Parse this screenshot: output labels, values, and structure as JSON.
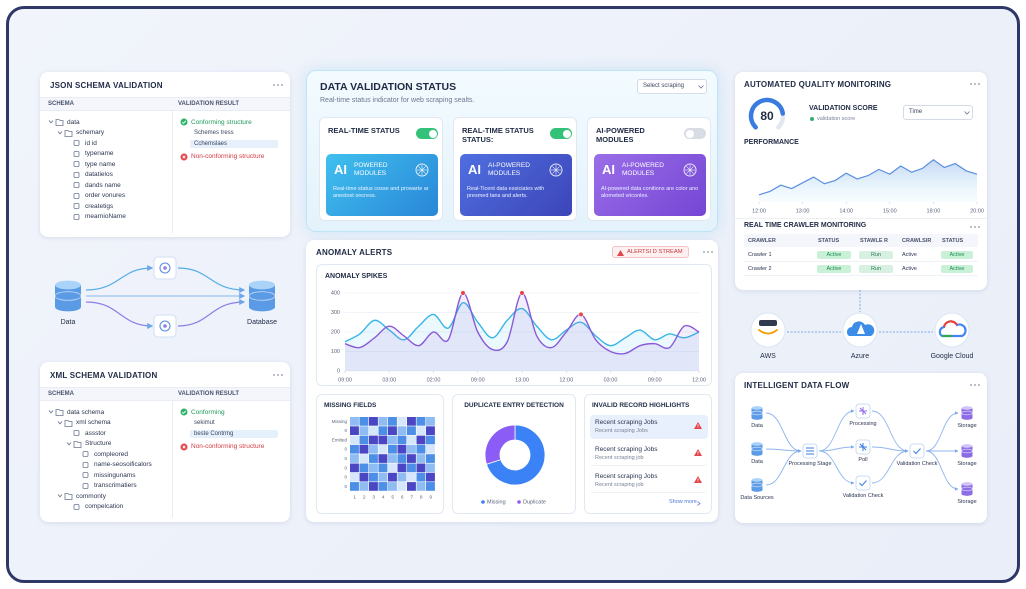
{
  "json_schema": {
    "title": "JSON SCHEMA VALIDATION",
    "columns": [
      "SCHEMA",
      "VALIDATION RESULT"
    ],
    "tree": [
      {
        "label": "data",
        "children": [
          {
            "label": "schemary",
            "children": [
              {
                "label": "id id"
              },
              {
                "label": "typename"
              },
              {
                "label": "type name"
              },
              {
                "label": "datatielos"
              },
              {
                "label": "dands name"
              },
              {
                "label": "order vonures"
              },
              {
                "label": "createtigs"
              },
              {
                "label": "mearnioName"
              }
            ]
          }
        ]
      }
    ],
    "results": [
      {
        "label": "Conforming structure",
        "ok": true,
        "children": [
          "Schemes tress",
          "Cchemslaes"
        ]
      },
      {
        "label": "Non-conforming structure",
        "ok": false
      }
    ]
  },
  "data_flow": {
    "source": "Data",
    "target": "Database"
  },
  "xml_schema": {
    "title": "XML SCHEMA VALIDATION",
    "columns": [
      "SCHEMA",
      "VALIDATION RESULT"
    ],
    "tree": [
      {
        "label": "data schema",
        "children": [
          {
            "label": "xml schema",
            "children": [
              {
                "label": "assstor"
              },
              {
                "label": "Structure",
                "children": [
                  {
                    "label": "compleored"
                  },
                  {
                    "label": "name-seosoificalors"
                  },
                  {
                    "label": "missingunams"
                  },
                  {
                    "label": "transcrimatiers"
                  }
                ]
              }
            ]
          },
          {
            "label": "commonty",
            "children": [
              {
                "label": "compelcation"
              }
            ]
          }
        ]
      }
    ],
    "results": [
      {
        "label": "Conforming",
        "ok": true,
        "children": [
          "sekimut",
          "beste Contrmg"
        ]
      },
      {
        "label": "Non-conforming structure",
        "ok": false
      }
    ]
  },
  "validation_status": {
    "title": "DATA VALIDATION STATUS",
    "subtitle": "Real-time status indicator for web scraping sealts.",
    "select": "Select scraping",
    "cards": [
      {
        "title": "REAL-TIME STATUS",
        "on": true,
        "badge": "AI",
        "module": "POWERED MODULES",
        "description": "Real-time status cosse and prowarte ar anestost oncress."
      },
      {
        "title": "REAL-TIME STATUS STATUS:",
        "on": true,
        "badge": "AI",
        "module": "AI-POWERED MODULES",
        "description": "Real-Ticent data essiciates with presmed tans and alerts."
      },
      {
        "title": "AI-POWERED MODULES",
        "on": false,
        "badge": "AI",
        "module": "AI-POWERED MODULES",
        "description": "AI-powered data conitions are color ano alorneted vriconles."
      }
    ]
  },
  "anomaly": {
    "title": "ANOMALY ALERTS",
    "badge": "ALERTSI D STREAM",
    "chart": {
      "type": "line",
      "title": "ANOMALY SPIKES",
      "x": [
        0,
        1,
        2,
        3,
        4,
        5,
        6,
        7,
        8,
        9,
        10,
        11,
        12,
        13,
        14,
        15,
        16,
        17,
        18,
        19,
        20,
        21,
        22,
        23,
        24
      ],
      "xlim": [
        0,
        24
      ],
      "xticks": [
        {
          "value": 0,
          "label": "09:00"
        },
        {
          "value": 3,
          "label": "03:00"
        },
        {
          "value": 6,
          "label": "02:00"
        },
        {
          "value": 9,
          "label": "09:00"
        },
        {
          "value": 12,
          "label": "13:00"
        },
        {
          "value": 15,
          "label": "12:00"
        },
        {
          "value": 18,
          "label": "03:00"
        },
        {
          "value": 21,
          "label": "09:00"
        },
        {
          "value": 24,
          "label": "12:00"
        }
      ],
      "ylim": [
        0,
        400
      ],
      "yticks": [
        0,
        100,
        200,
        300,
        400
      ],
      "series": [
        {
          "color": "#38b6e8",
          "values": [
            150,
            190,
            260,
            210,
            160,
            230,
            290,
            220,
            350,
            250,
            170,
            260,
            320,
            230,
            160,
            210,
            250,
            180,
            130,
            170,
            210,
            160,
            190,
            170,
            200
          ]
        },
        {
          "color": "#8a5ad8",
          "values": [
            140,
            120,
            170,
            230,
            180,
            130,
            200,
            160,
            400,
            200,
            110,
            150,
            400,
            180,
            120,
            200,
            290,
            160,
            100,
            90,
            130,
            140,
            120,
            230,
            200
          ],
          "alerts": [
            8,
            12,
            16
          ],
          "alert_color": "#e5484d"
        }
      ]
    }
  },
  "missing_fields": {
    "title": "MISSING FIELDS",
    "rows": [
      "Missing",
      "0",
      "Emitted",
      "0",
      "0",
      "0",
      "0",
      "0"
    ],
    "columns": [
      "1",
      "2",
      "3",
      "4",
      "5",
      "6",
      "7",
      "8",
      "9"
    ],
    "values": [
      [
        1,
        2,
        3,
        1,
        2,
        0,
        3,
        2,
        1
      ],
      [
        3,
        1,
        0,
        2,
        3,
        1,
        2,
        0,
        3
      ],
      [
        0,
        2,
        3,
        3,
        1,
        2,
        0,
        3,
        2
      ],
      [
        2,
        3,
        1,
        0,
        2,
        3,
        1,
        2,
        0
      ],
      [
        1,
        0,
        2,
        3,
        1,
        2,
        3,
        1,
        2
      ],
      [
        3,
        2,
        1,
        2,
        0,
        3,
        2,
        3,
        1
      ],
      [
        0,
        3,
        2,
        1,
        3,
        1,
        0,
        2,
        3
      ],
      [
        2,
        1,
        3,
        2,
        1,
        0,
        3,
        1,
        2
      ]
    ],
    "colors": [
      "#d6e6fb",
      "#8fbcf2",
      "#4d8ee6",
      "#4a46c4"
    ]
  },
  "duplicates": {
    "type": "pie",
    "title": "DUPLICATE ENTRY DETECTION",
    "categories": [
      "Missing",
      "Duplicate"
    ],
    "values": [
      70,
      30
    ],
    "colors": [
      "#3b82f6",
      "#8b5cf6"
    ]
  },
  "invalid_records": {
    "title": "INVALID RECORD HIGHLIGHTS",
    "items": [
      {
        "title": "Recent scraping Jobs",
        "subtitle": "Recent scraping Jobs"
      },
      {
        "title": "Recent scraping Jobs",
        "subtitle": "Recent scraping job"
      },
      {
        "title": "Recent scraping Jobs",
        "subtitle": "Recent scraping job"
      }
    ],
    "more": "Show more"
  },
  "quality": {
    "title": "AUTOMATED QUALITY MONITORING",
    "score": {
      "value": 80,
      "range": [
        0,
        100
      ],
      "label": "VALIDATION SCORE",
      "caption": "validation score"
    },
    "select": "Time",
    "performance": {
      "type": "line",
      "title": "PERFORMANCE",
      "x": [
        0,
        1,
        2,
        3,
        4,
        5,
        6,
        7,
        8,
        9,
        10,
        11,
        12,
        13,
        14,
        15,
        16,
        17,
        18,
        19,
        20
      ],
      "xlim": [
        0,
        20
      ],
      "xticks": [
        {
          "value": 0,
          "label": "12:00"
        },
        {
          "value": 4,
          "label": "13:00"
        },
        {
          "value": 8,
          "label": "14:00"
        },
        {
          "value": 12,
          "label": "15:00"
        },
        {
          "value": 16,
          "label": "18:00"
        },
        {
          "value": 20,
          "label": "20:00"
        }
      ],
      "ylim": [
        0,
        100
      ],
      "values": [
        15,
        22,
        35,
        28,
        40,
        52,
        38,
        45,
        60,
        48,
        55,
        68,
        58,
        75,
        62,
        70,
        88,
        72,
        80,
        65,
        58
      ],
      "color": "#5b8fe0"
    }
  },
  "crawler": {
    "title": "REAL TIME CRAWLER MONITORING",
    "columns": [
      "CRAWLER",
      "STATUS",
      "STAWLE R",
      "CRAWLSIR",
      "STATUS"
    ],
    "rows": [
      [
        "Crawler 1",
        "Active",
        "Run",
        "Active",
        "Active"
      ],
      [
        "Crawler 2",
        "Active",
        "Run",
        "Active",
        "Active"
      ]
    ]
  },
  "clouds": [
    "AWS",
    "Azure",
    "Google Cloud"
  ],
  "intelligent_flow": {
    "title": "INTELLIGENT DATA FLOW",
    "nodes": [
      "Data",
      "Data",
      "Data Sources",
      "Processing Stage",
      "Processing",
      "Poll",
      "Validation Check",
      "Validation Check",
      "Storage",
      "Storage",
      "Storage"
    ]
  }
}
